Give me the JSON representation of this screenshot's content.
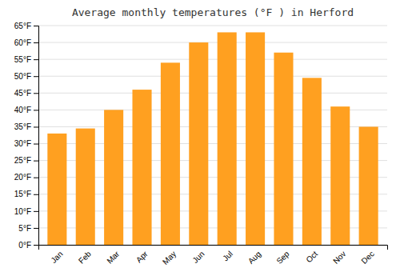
{
  "chart_data": {
    "type": "bar",
    "title": "Average monthly temperatures (°F ) in Herford",
    "categories": [
      "Jan",
      "Feb",
      "Mar",
      "Apr",
      "May",
      "Jun",
      "Jul",
      "Aug",
      "Sep",
      "Oct",
      "Nov",
      "Dec"
    ],
    "values": [
      33,
      34.5,
      40,
      46,
      54,
      60,
      63,
      63,
      57,
      49.5,
      41,
      35
    ],
    "color": "#FFA020",
    "ylim": [
      0,
      65
    ],
    "yticks": [
      {
        "value": 0,
        "label": "0°F"
      },
      {
        "value": 5,
        "label": "5°F"
      },
      {
        "value": 10,
        "label": "10°F"
      },
      {
        "value": 15,
        "label": "15°F"
      },
      {
        "value": 20,
        "label": "20°F"
      },
      {
        "value": 25,
        "label": "25°F"
      },
      {
        "value": 30,
        "label": "30°F"
      },
      {
        "value": 35,
        "label": "35°F"
      },
      {
        "value": 40,
        "label": "40°F"
      },
      {
        "value": 45,
        "label": "45°F"
      },
      {
        "value": 50,
        "label": "50°F"
      },
      {
        "value": 55,
        "label": "55°F"
      },
      {
        "value": 60,
        "label": "60°F"
      },
      {
        "value": 65,
        "label": "65°F"
      }
    ],
    "grid": true
  }
}
